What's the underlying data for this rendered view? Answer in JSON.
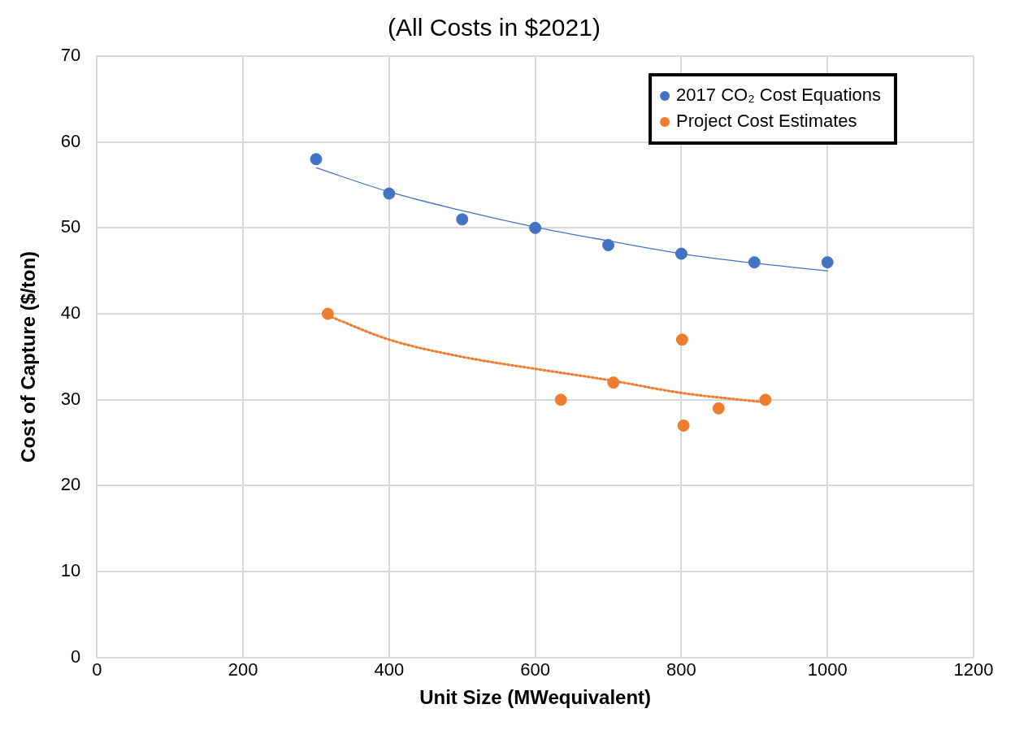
{
  "chart_data": {
    "type": "scatter",
    "title": "(All Costs in $2021)",
    "xlabel": "Unit Size (MWequivalent)",
    "ylabel": "Cost of Capture ($/ton)",
    "xlim": [
      0,
      1200
    ],
    "xticks": [
      0,
      200,
      400,
      600,
      800,
      1000,
      1200
    ],
    "ylim": [
      0,
      70
    ],
    "yticks": [
      0,
      10,
      20,
      30,
      40,
      50,
      60,
      70
    ],
    "grid": true,
    "legend": "top right",
    "series": [
      {
        "name": "2017 CO₂ Cost Equations",
        "color": "#4472c4",
        "marker": "circle",
        "x": [
          300,
          400,
          500,
          600,
          700,
          800,
          900,
          1000
        ],
        "values": [
          58,
          54,
          51,
          50,
          48,
          47,
          46,
          46
        ]
      },
      {
        "name": "Project Cost Estimates",
        "color": "#ed7d31",
        "marker": "circle",
        "x": [
          316,
          635,
          707,
          801,
          803,
          851,
          915
        ],
        "values": [
          40,
          30,
          32,
          37,
          27,
          29,
          30
        ]
      },
      {
        "type": "line",
        "color": "#4472c4",
        "line_style": "solid",
        "x": [
          300,
          400,
          500,
          600,
          700,
          800,
          900,
          1000
        ],
        "values": [
          57,
          54.2,
          52,
          50.1,
          48.5,
          47,
          45.9,
          45
        ]
      },
      {
        "type": "line",
        "color": "#ed7d31",
        "line_style": "dotted",
        "x": [
          316,
          400,
          500,
          600,
          700,
          800,
          915
        ],
        "values": [
          39.8,
          37,
          35,
          33.6,
          32.3,
          30.8,
          29.7
        ]
      }
    ]
  }
}
